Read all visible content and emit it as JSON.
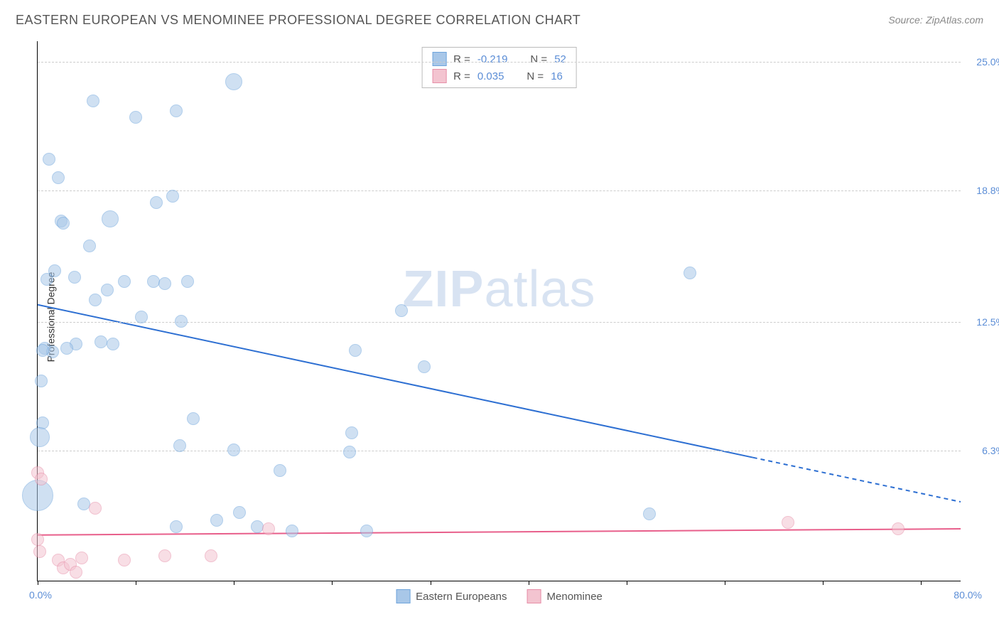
{
  "title": "EASTERN EUROPEAN VS MENOMINEE PROFESSIONAL DEGREE CORRELATION CHART",
  "source_label": "Source:",
  "source_name": "ZipAtlas.com",
  "ylabel": "Professional Degree",
  "watermark_bold": "ZIP",
  "watermark_rest": "atlas",
  "xlim": [
    0,
    80
  ],
  "ylim": [
    0,
    26
  ],
  "xmin_label": "0.0%",
  "xmax_label": "80.0%",
  "yticks": [
    {
      "v": 6.3,
      "label": "6.3%"
    },
    {
      "v": 12.5,
      "label": "12.5%"
    },
    {
      "v": 18.8,
      "label": "18.8%"
    },
    {
      "v": 25.0,
      "label": "25.0%"
    }
  ],
  "xtick_positions": [
    0,
    8.5,
    17,
    25.5,
    34,
    42.5,
    51,
    59.5,
    68,
    76.5
  ],
  "series": [
    {
      "name": "Eastern Europeans",
      "color_fill": "#a8c7e8",
      "color_stroke": "#6fa5dc",
      "fill_opacity": 0.55,
      "marker_r": 9,
      "R": "-0.219",
      "N": "52",
      "trend": {
        "y_at_xmin": 13.3,
        "y_at_xmax": 3.8,
        "solid_until_x": 62,
        "color": "#2d6fd2",
        "width": 2
      },
      "points": [
        [
          1.0,
          20.3
        ],
        [
          1.8,
          19.4
        ],
        [
          4.8,
          23.1
        ],
        [
          6.3,
          17.4,
          12
        ],
        [
          8.5,
          22.3
        ],
        [
          12.0,
          22.6
        ],
        [
          17.0,
          24.0,
          12
        ],
        [
          2.0,
          17.3
        ],
        [
          2.2,
          17.2
        ],
        [
          3.2,
          14.6
        ],
        [
          4.5,
          16.1
        ],
        [
          1.5,
          14.9
        ],
        [
          0.8,
          14.5
        ],
        [
          6.0,
          14.0
        ],
        [
          7.5,
          14.4
        ],
        [
          5.0,
          13.5
        ],
        [
          3.3,
          11.4
        ],
        [
          6.5,
          11.4
        ],
        [
          10.3,
          18.2
        ],
        [
          11.7,
          18.5
        ],
        [
          10.0,
          14.4
        ],
        [
          11.0,
          14.3
        ],
        [
          12.4,
          12.5
        ],
        [
          13.0,
          14.4
        ],
        [
          0.6,
          11.2
        ],
        [
          1.3,
          11.0
        ],
        [
          0.4,
          11.1
        ],
        [
          0.3,
          9.6
        ],
        [
          0.4,
          7.6
        ],
        [
          0.2,
          6.9,
          14
        ],
        [
          0.0,
          4.1,
          22
        ],
        [
          2.5,
          11.2
        ],
        [
          5.5,
          11.5
        ],
        [
          9.0,
          12.7
        ],
        [
          13.5,
          7.8
        ],
        [
          12.3,
          6.5
        ],
        [
          12.0,
          2.6
        ],
        [
          15.5,
          2.9
        ],
        [
          17.5,
          3.3
        ],
        [
          17.0,
          6.3
        ],
        [
          19.0,
          2.6
        ],
        [
          21.0,
          5.3
        ],
        [
          22.0,
          2.4
        ],
        [
          27.5,
          11.1
        ],
        [
          27.0,
          6.2
        ],
        [
          28.5,
          2.4
        ],
        [
          33.5,
          10.3
        ],
        [
          31.5,
          13.0
        ],
        [
          53.0,
          3.2
        ],
        [
          56.5,
          14.8
        ],
        [
          27.2,
          7.1
        ],
        [
          4.0,
          3.7
        ]
      ]
    },
    {
      "name": "Menominee",
      "color_fill": "#f3c4d0",
      "color_stroke": "#e78fa8",
      "fill_opacity": 0.55,
      "marker_r": 9,
      "R": "0.035",
      "N": "16",
      "trend": {
        "y_at_xmin": 2.2,
        "y_at_xmax": 2.5,
        "solid_until_x": 80,
        "color": "#e85f8b",
        "width": 2
      },
      "points": [
        [
          0.0,
          5.2
        ],
        [
          0.3,
          4.9
        ],
        [
          0.0,
          2.0
        ],
        [
          0.2,
          1.4
        ],
        [
          1.8,
          1.0
        ],
        [
          2.2,
          0.6
        ],
        [
          2.8,
          0.8
        ],
        [
          3.3,
          0.4
        ],
        [
          3.8,
          1.1
        ],
        [
          5.0,
          3.5
        ],
        [
          7.5,
          1.0
        ],
        [
          11.0,
          1.2
        ],
        [
          15.0,
          1.2
        ],
        [
          20.0,
          2.5
        ],
        [
          65.0,
          2.8
        ],
        [
          74.5,
          2.5
        ]
      ]
    }
  ],
  "stats_labels": {
    "R": "R =",
    "N": "N ="
  }
}
